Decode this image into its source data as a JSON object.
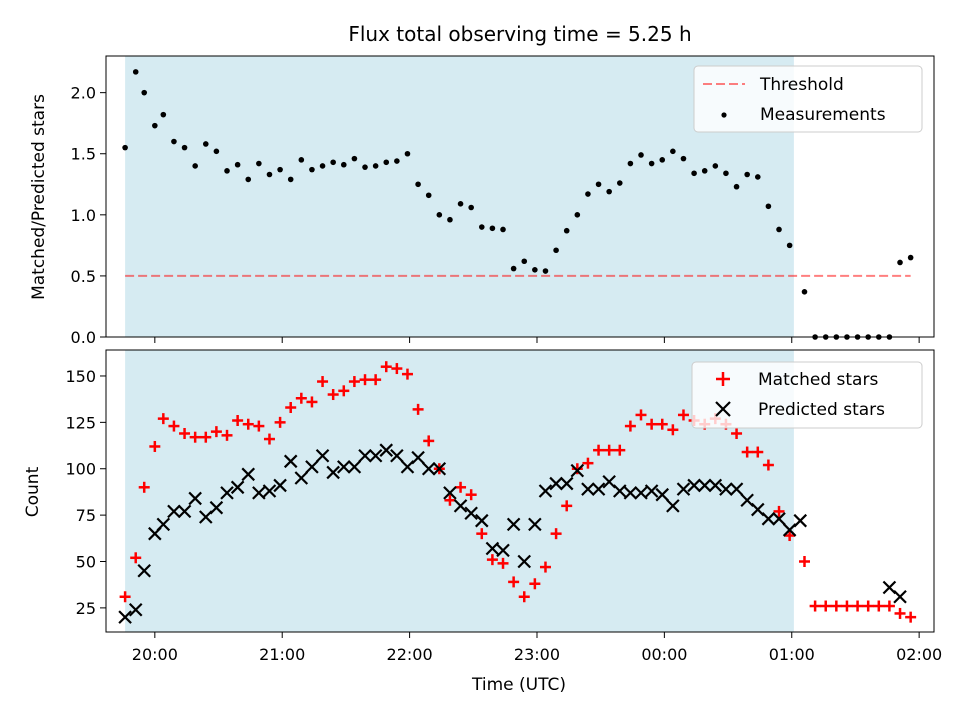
{
  "figure": {
    "title": "Flux total observing time = 5.25 h",
    "xlabel": "Time (UTC)"
  },
  "colors": {
    "shade": "#add8e6",
    "threshold": "#ff0000",
    "matched": "#ff0000",
    "predicted": "#000000",
    "measurement": "#000000"
  },
  "chart_data": [
    {
      "type": "scatter",
      "panel": "top",
      "ylabel": "Matched/Predicted stars",
      "xlim": [
        "19:37",
        "02:07"
      ],
      "ylim": [
        0,
        2.3
      ],
      "yticks": [
        "0.0",
        "0.5",
        "1.0",
        "1.5",
        "2.0"
      ],
      "x_time_unit": "HH:MM UTC, times after midnight are the next day",
      "shaded_span": [
        "19:46",
        "01:01"
      ],
      "legend_position": "top-right",
      "threshold": {
        "name": "Threshold",
        "y": 0.5,
        "x": [
          "19:46",
          "01:56"
        ],
        "style": "dashed"
      },
      "series": [
        {
          "name": "Measurements",
          "marker": "dot",
          "x": [
            "19:46",
            "19:51",
            "19:55",
            "20:00",
            "20:04",
            "20:09",
            "20:14",
            "20:19",
            "20:24",
            "20:29",
            "20:34",
            "20:39",
            "20:44",
            "20:49",
            "20:54",
            "20:59",
            "21:04",
            "21:09",
            "21:14",
            "21:19",
            "21:24",
            "21:29",
            "21:34",
            "21:39",
            "21:44",
            "21:49",
            "21:54",
            "21:59",
            "22:04",
            "22:09",
            "22:14",
            "22:19",
            "22:24",
            "22:29",
            "22:34",
            "22:39",
            "22:44",
            "22:49",
            "22:54",
            "22:59",
            "23:04",
            "23:09",
            "23:14",
            "23:19",
            "23:24",
            "23:29",
            "23:34",
            "23:39",
            "23:44",
            "23:49",
            "23:54",
            "23:59",
            "00:04",
            "00:09",
            "00:14",
            "00:19",
            "00:24",
            "00:29",
            "00:34",
            "00:39",
            "00:44",
            "00:49",
            "00:54",
            "00:59",
            "01:06",
            "01:11",
            "01:16",
            "01:21",
            "01:26",
            "01:31",
            "01:36",
            "01:41",
            "01:46",
            "01:51",
            "01:56"
          ],
          "y": [
            1.55,
            2.17,
            2.0,
            1.73,
            1.82,
            1.6,
            1.55,
            1.4,
            1.58,
            1.52,
            1.36,
            1.41,
            1.29,
            1.42,
            1.33,
            1.37,
            1.29,
            1.45,
            1.37,
            1.4,
            1.43,
            1.41,
            1.46,
            1.39,
            1.4,
            1.43,
            1.44,
            1.5,
            1.25,
            1.16,
            1.0,
            0.96,
            1.09,
            1.06,
            0.9,
            0.89,
            0.88,
            0.56,
            0.62,
            0.55,
            0.54,
            0.71,
            0.87,
            1.0,
            1.17,
            1.25,
            1.19,
            1.26,
            1.42,
            1.49,
            1.42,
            1.45,
            1.52,
            1.46,
            1.34,
            1.36,
            1.4,
            1.34,
            1.23,
            1.33,
            1.31,
            1.07,
            0.88,
            0.75,
            0.37,
            0.0,
            0.0,
            0.0,
            0.0,
            0.0,
            0.0,
            0.0,
            0.0,
            0.61,
            0.65
          ]
        }
      ]
    },
    {
      "type": "scatter",
      "panel": "bottom",
      "ylabel": "Count",
      "xlim": [
        "19:37",
        "02:07"
      ],
      "ylim": [
        12,
        164
      ],
      "yticks": [
        "25",
        "50",
        "75",
        "100",
        "125",
        "150"
      ],
      "xticks": [
        "20:00",
        "21:00",
        "22:00",
        "23:00",
        "00:00",
        "01:00",
        "02:00"
      ],
      "shaded_span": [
        "19:46",
        "01:01"
      ],
      "legend_position": "top-right",
      "series": [
        {
          "name": "Matched stars",
          "marker": "plus",
          "x": [
            "19:46",
            "19:51",
            "19:55",
            "20:00",
            "20:04",
            "20:09",
            "20:14",
            "20:19",
            "20:24",
            "20:29",
            "20:34",
            "20:39",
            "20:44",
            "20:49",
            "20:54",
            "20:59",
            "21:04",
            "21:09",
            "21:14",
            "21:19",
            "21:24",
            "21:29",
            "21:34",
            "21:39",
            "21:44",
            "21:49",
            "21:54",
            "21:59",
            "22:04",
            "22:09",
            "22:14",
            "22:19",
            "22:24",
            "22:29",
            "22:34",
            "22:39",
            "22:44",
            "22:49",
            "22:54",
            "22:59",
            "23:04",
            "23:09",
            "23:14",
            "23:19",
            "23:24",
            "23:29",
            "23:34",
            "23:39",
            "23:44",
            "23:49",
            "23:54",
            "23:59",
            "00:04",
            "00:09",
            "00:14",
            "00:19",
            "00:24",
            "00:29",
            "00:34",
            "00:39",
            "00:44",
            "00:49",
            "00:54",
            "00:59",
            "01:06",
            "01:11",
            "01:16",
            "01:21",
            "01:26",
            "01:31",
            "01:36",
            "01:41",
            "01:46",
            "01:51",
            "01:56"
          ],
          "y": [
            31,
            52,
            90,
            112,
            127,
            123,
            119,
            117,
            117,
            120,
            118,
            126,
            124,
            123,
            116,
            125,
            133,
            138,
            136,
            147,
            140,
            142,
            147,
            148,
            148,
            155,
            154,
            151,
            132,
            115,
            100,
            83,
            90,
            86,
            65,
            51,
            49,
            39,
            31,
            38,
            47,
            65,
            80,
            100,
            103,
            110,
            110,
            110,
            123,
            129,
            124,
            124,
            121,
            129,
            126,
            124,
            127,
            124,
            119,
            109,
            109,
            102,
            77,
            64,
            50,
            26,
            26,
            26,
            26,
            26,
            26,
            26,
            26,
            22,
            20
          ]
        },
        {
          "name": "Predicted stars",
          "marker": "x",
          "x": [
            "19:46",
            "19:51",
            "19:55",
            "20:00",
            "20:04",
            "20:09",
            "20:14",
            "20:19",
            "20:24",
            "20:29",
            "20:34",
            "20:39",
            "20:44",
            "20:49",
            "20:54",
            "20:59",
            "21:04",
            "21:09",
            "21:14",
            "21:19",
            "21:24",
            "21:29",
            "21:34",
            "21:39",
            "21:44",
            "21:49",
            "21:54",
            "21:59",
            "22:04",
            "22:09",
            "22:14",
            "22:19",
            "22:24",
            "22:29",
            "22:34",
            "22:39",
            "22:44",
            "22:49",
            "22:54",
            "22:59",
            "23:04",
            "23:09",
            "23:14",
            "23:19",
            "23:24",
            "23:29",
            "23:34",
            "23:39",
            "23:44",
            "23:49",
            "23:54",
            "23:59",
            "00:04",
            "00:09",
            "00:14",
            "00:19",
            "00:24",
            "00:29",
            "00:34",
            "00:39",
            "00:44",
            "00:49",
            "00:54",
            "00:59",
            "01:04",
            "01:46",
            "01:51"
          ],
          "y": [
            20,
            24,
            45,
            65,
            70,
            77,
            77,
            84,
            74,
            79,
            87,
            90,
            97,
            87,
            88,
            91,
            104,
            95,
            101,
            107,
            98,
            101,
            101,
            107,
            107,
            110,
            107,
            101,
            106,
            100,
            100,
            87,
            80,
            76,
            72,
            57,
            56,
            70,
            50,
            70,
            88,
            92,
            92,
            99,
            89,
            89,
            93,
            88,
            87,
            87,
            88,
            86,
            80,
            89,
            91,
            91,
            91,
            89,
            89,
            83,
            78,
            73,
            73,
            67,
            72,
            36,
            31
          ]
        }
      ]
    }
  ]
}
